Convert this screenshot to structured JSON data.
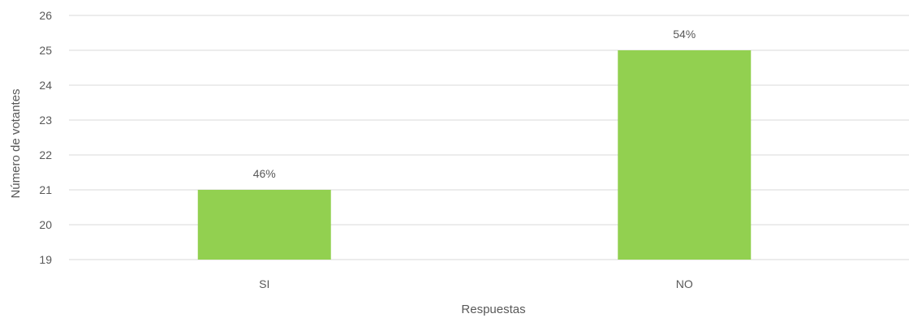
{
  "chart_data": {
    "type": "bar",
    "categories": [
      "SI",
      "NO"
    ],
    "values": [
      21,
      25
    ],
    "data_labels": [
      "46%",
      "54%"
    ],
    "xlabel": "Respuestas",
    "ylabel": "Número de votantes",
    "ylim": [
      19,
      26
    ],
    "yticks": [
      19,
      20,
      21,
      22,
      23,
      24,
      25,
      26
    ],
    "grid": true,
    "bar_color": "#92d050",
    "grid_color": "#d9d9d9",
    "text_color": "#595959"
  }
}
